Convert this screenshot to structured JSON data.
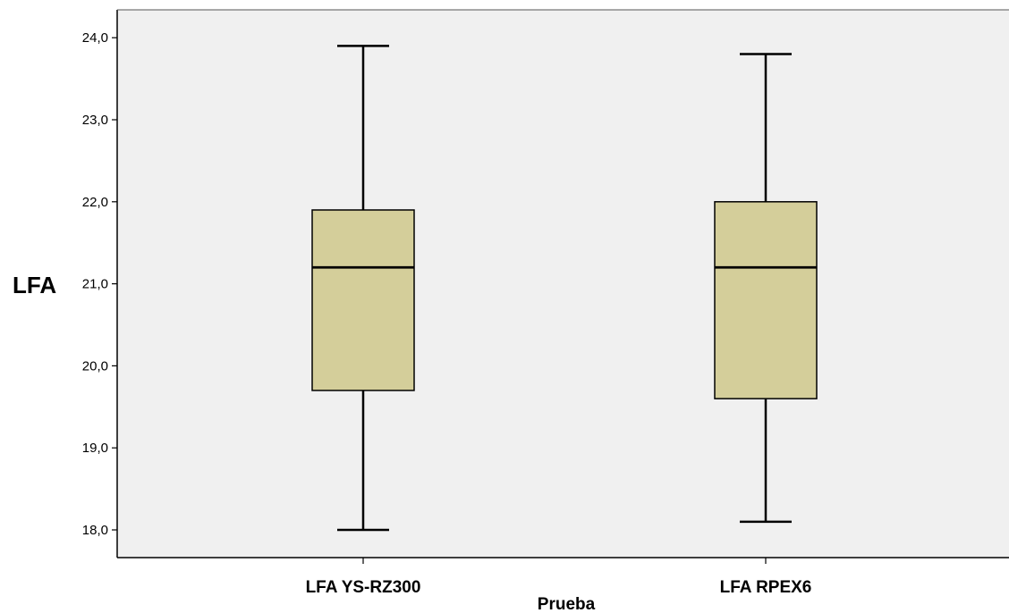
{
  "chart_data": {
    "type": "boxplot",
    "xlabel": "Prueba",
    "ylabel": "LFA",
    "ylim": [
      17.8,
      24.3
    ],
    "yticks": [
      18.0,
      19.0,
      20.0,
      21.0,
      22.0,
      23.0,
      24.0
    ],
    "ytick_labels": [
      "18,0",
      "19,0",
      "20,0",
      "21,0",
      "22,0",
      "23,0",
      "24,0"
    ],
    "categories": [
      "LFA  YS-RZ300",
      "LFA  RPEX6"
    ],
    "boxes": [
      {
        "category": "LFA  YS-RZ300",
        "min": 18.0,
        "q1": 19.7,
        "median": 21.2,
        "q3": 21.9,
        "max": 23.9
      },
      {
        "category": "LFA  RPEX6",
        "min": 18.1,
        "q1": 19.6,
        "median": 21.2,
        "q3": 22.0,
        "max": 23.8
      }
    ],
    "grid": false,
    "colors": {
      "plot_background": "#f0f0f0",
      "box_fill": "#d4ce9a",
      "line": "#000000"
    }
  }
}
